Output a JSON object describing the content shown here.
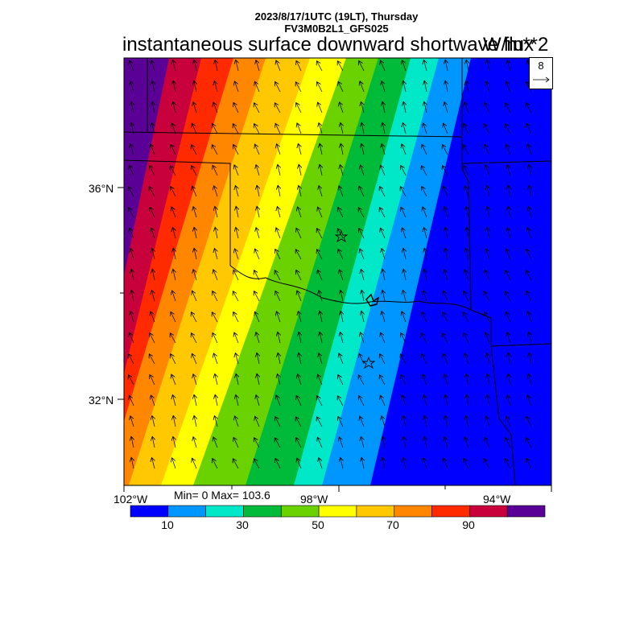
{
  "header": {
    "datetime": "2023/8/17/1UTC (19LT), Thursday",
    "model": "FV3M0B2L1_GFS025",
    "title": "instantaneous surface downward shortwave flux",
    "units": "W/m**2"
  },
  "axes": {
    "lat_labels": [
      "36°N",
      "32°N"
    ],
    "lon_labels": [
      "102°W",
      "98°W",
      "94°W"
    ]
  },
  "stats": {
    "text": "Min= 0 Max= 103.6"
  },
  "vector_key": {
    "value": "8"
  },
  "colorbar": {
    "colors": [
      "#0000ff",
      "#0096ff",
      "#00e8c8",
      "#00bb3a",
      "#6ad200",
      "#ffff00",
      "#ffc800",
      "#ff8700",
      "#ff2a00",
      "#c8003c",
      "#5a0096"
    ],
    "labels": [
      "10",
      "30",
      "50",
      "70",
      "90"
    ]
  }
}
